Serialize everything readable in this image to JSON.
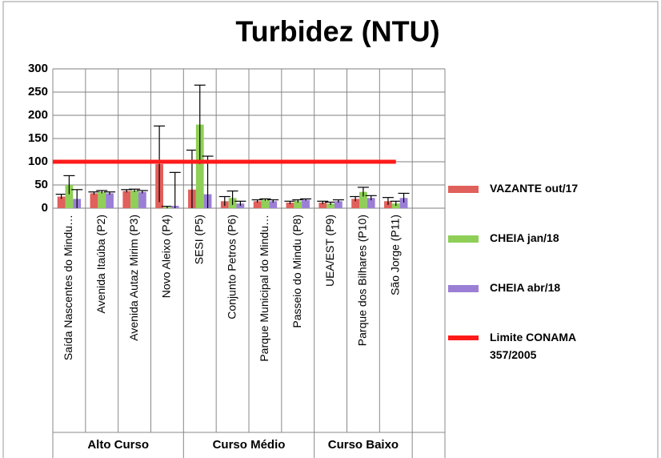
{
  "chart_data": {
    "type": "bar",
    "title": "Turbidez (NTU)",
    "categories": [
      "Saída Nascentes do Mindu…",
      "Avenida Itaúba (P2)",
      "Avenida Autaz Mirim (P3)",
      "Novo Aleixo (P4)",
      "SESI (P5)",
      "Conjunto Petros (P6)",
      "Parque Municipal do Mindu…",
      "Passeio do Mindu (P8)",
      "UEA/EST (P9)",
      "Parque dos Bilhares (P10)",
      "São Jorge (P11)",
      null
    ],
    "groups": [
      {
        "name": "Alto Curso",
        "size": 4
      },
      {
        "name": "Curso Médio",
        "size": 4
      },
      {
        "name": "Curso Baixo",
        "size": 3
      }
    ],
    "series": [
      {
        "name": "VAZANTE out/17",
        "color": "#e0605c",
        "values": [
          25,
          32,
          37,
          95,
          40,
          15,
          15,
          12,
          12,
          20,
          15,
          null
        ],
        "errors": [
          5,
          3,
          3,
          82,
          85,
          10,
          3,
          3,
          3,
          5,
          8,
          null
        ]
      },
      {
        "name": "CHEIA jan/18",
        "color": "#8fcf57",
        "values": [
          50,
          35,
          38,
          2,
          180,
          22,
          18,
          15,
          10,
          35,
          10,
          null
        ],
        "errors": [
          20,
          3,
          3,
          2,
          85,
          15,
          2,
          3,
          3,
          10,
          5,
          null
        ]
      },
      {
        "name": "CHEIA abr/18",
        "color": "#9b7fd6",
        "values": [
          20,
          32,
          35,
          5,
          30,
          10,
          15,
          18,
          15,
          22,
          22,
          null
        ],
        "errors": [
          20,
          3,
          3,
          72,
          82,
          5,
          3,
          2,
          3,
          5,
          10,
          null
        ]
      }
    ],
    "limit": {
      "name": "Limite CONAMA 357/2005",
      "value": 100,
      "color": "#ff1a1a"
    },
    "ylim": [
      0,
      300
    ],
    "yticks": [
      0,
      50,
      100,
      150,
      200,
      250,
      300
    ],
    "grid": true
  }
}
